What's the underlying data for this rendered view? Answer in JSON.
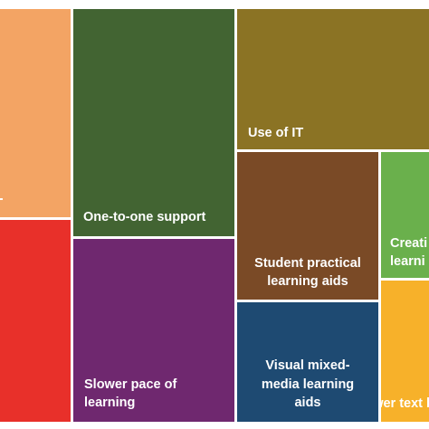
{
  "chart_data": {
    "type": "treemap",
    "title": "",
    "items": [
      {
        "label": "",
        "color": "#F3A464"
      },
      {
        "label": "",
        "color": "#E8302A"
      },
      {
        "label": "One-to-one support",
        "color": "#426432"
      },
      {
        "label": "Slower pace of\nlearning",
        "color": "#6F286F"
      },
      {
        "label": "Use of IT",
        "color": "#8B7324"
      },
      {
        "label": "Student practical\nlearning aids",
        "color": "#7A4A26"
      },
      {
        "label": "Visual mixed-\nmedia learning\naids",
        "color": "#1E4A72"
      },
      {
        "label": "Creati\nlearni",
        "color": "#6AB04C"
      },
      {
        "label": "Fewer\ntext\nbooks",
        "color": "#F7B12A"
      }
    ]
  }
}
